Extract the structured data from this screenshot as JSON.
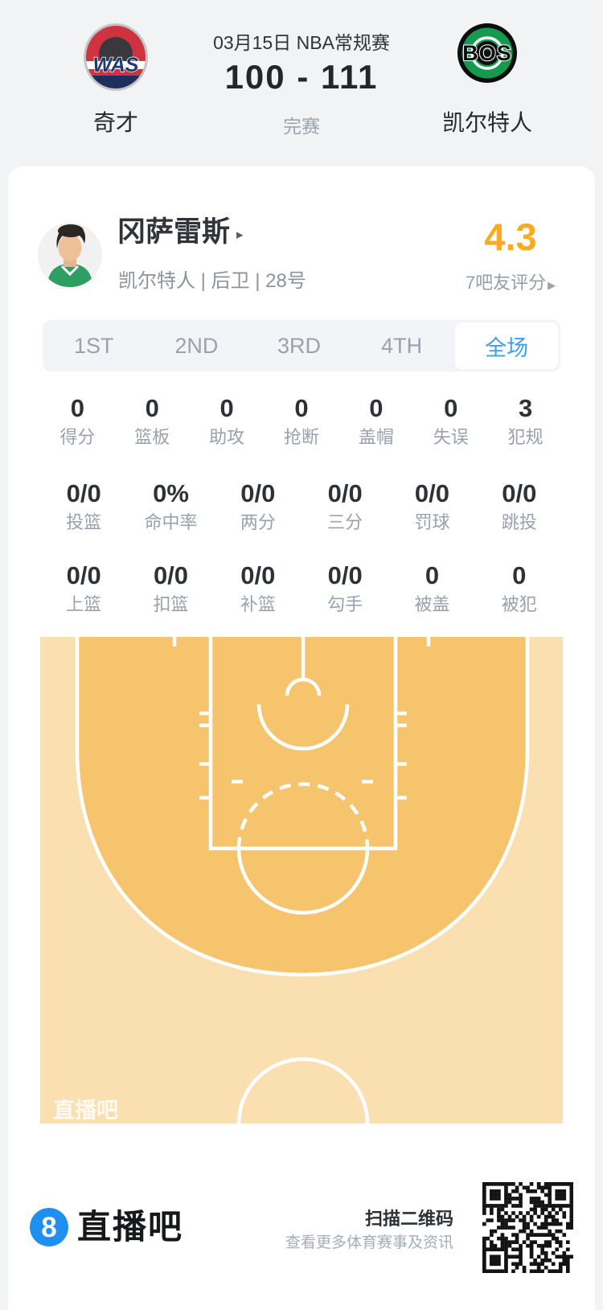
{
  "header": {
    "competition": "03月15日 NBA常规赛",
    "score": "100 - 111",
    "status": "完赛",
    "home_team": {
      "abbr": "WAS",
      "name": "奇才"
    },
    "away_team": {
      "abbr": "BOS",
      "name": "凯尔特人"
    }
  },
  "player": {
    "name": "冈萨雷斯",
    "meta": "凯尔特人 | 后卫 | 28号",
    "rating": "4.3",
    "rating_label": "7吧友评分"
  },
  "tabs": {
    "items": [
      {
        "label": "1ST",
        "active": false
      },
      {
        "label": "2ND",
        "active": false
      },
      {
        "label": "3RD",
        "active": false
      },
      {
        "label": "4TH",
        "active": false
      },
      {
        "label": "全场",
        "active": true
      }
    ]
  },
  "stats": {
    "row1": [
      {
        "value": "0",
        "label": "得分"
      },
      {
        "value": "0",
        "label": "篮板"
      },
      {
        "value": "0",
        "label": "助攻"
      },
      {
        "value": "0",
        "label": "抢断"
      },
      {
        "value": "0",
        "label": "盖帽"
      },
      {
        "value": "0",
        "label": "失误"
      },
      {
        "value": "3",
        "label": "犯规"
      }
    ],
    "row2": [
      {
        "value": "0/0",
        "label": "投篮"
      },
      {
        "value": "0%",
        "label": "命中率"
      },
      {
        "value": "0/0",
        "label": "两分"
      },
      {
        "value": "0/0",
        "label": "三分"
      },
      {
        "value": "0/0",
        "label": "罚球"
      },
      {
        "value": "0/0",
        "label": "跳投"
      }
    ],
    "row3": [
      {
        "value": "0/0",
        "label": "上篮"
      },
      {
        "value": "0/0",
        "label": "扣篮"
      },
      {
        "value": "0/0",
        "label": "补篮"
      },
      {
        "value": "0/0",
        "label": "勾手"
      },
      {
        "value": "0",
        "label": "被盖"
      },
      {
        "value": "0",
        "label": "被犯"
      }
    ]
  },
  "court": {
    "watermark": "直播吧",
    "colors": {
      "inside": "#f5c46c",
      "outside": "#fae0b0",
      "line": "#ffffff"
    }
  },
  "footer": {
    "brand": "直播吧",
    "qr_title": "扫描二维码",
    "qr_subtitle": "查看更多体育赛事及资讯"
  },
  "icons": {
    "caret_right": "▸",
    "arrow_right": "▶"
  },
  "colors": {
    "accent_blue": "#3a9ff2",
    "rating_orange": "#ffaa1e",
    "page_bg": "#f2f3f5"
  }
}
